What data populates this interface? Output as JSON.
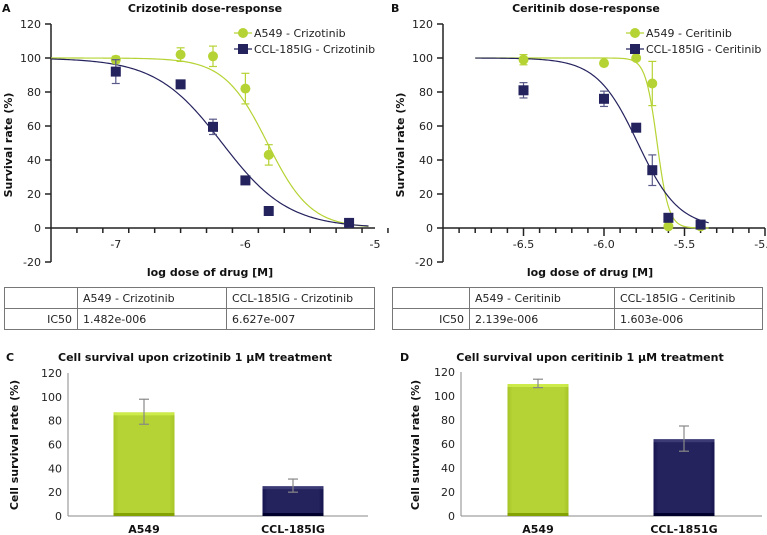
{
  "colors": {
    "a549": "#b5d334",
    "ccl": "#25235e",
    "axis": "#222222",
    "bar_axis": "#888888"
  },
  "chart_data": [
    {
      "panel": "A",
      "type": "scatter",
      "title": "Crizotinib dose-response",
      "xlabel": "log dose of drug [M]",
      "ylabel": "Survival rate (%)",
      "xlim": [
        -7.5,
        -5
      ],
      "ylim": [
        -20,
        120
      ],
      "xticks": [
        -7,
        -6,
        -5
      ],
      "xtick_labels": [
        "-7",
        "-6",
        "-5"
      ],
      "yticks": [
        -20,
        0,
        20,
        40,
        60,
        80,
        100,
        120
      ],
      "ytick_labels": [
        "-20",
        "0",
        "20",
        "40",
        "60",
        "80",
        "100",
        "120"
      ],
      "legend_position": "top-right",
      "series": [
        {
          "name": "A549 - Crizotinib",
          "marker": "circle",
          "color_key": "a549",
          "x": [
            -7,
            -6.5,
            -6.25,
            -6,
            -5.82,
            -5.2
          ],
          "y": [
            99,
            102,
            101,
            82,
            43,
            3
          ],
          "err": [
            2,
            4,
            6,
            9,
            6,
            1
          ],
          "fit": {
            "top": 100,
            "bottom": 0,
            "logEC50": -5.83,
            "hill": -2.6,
            "xmin": -7.5,
            "xmax": -5.05
          }
        },
        {
          "name": "CCL-185IG - Crizotinib",
          "marker": "square",
          "color_key": "ccl",
          "x": [
            -7,
            -6.5,
            -6.25,
            -6,
            -5.82,
            -5.2
          ],
          "y": [
            92,
            84.5,
            59.5,
            28,
            10,
            3
          ],
          "err": [
            7,
            1,
            4.5,
            1,
            1,
            1
          ],
          "fit": {
            "top": 100,
            "bottom": 0,
            "logEC50": -6.18,
            "hill": -1.7,
            "xmin": -7.5,
            "xmax": -5.05
          }
        }
      ],
      "table": {
        "headers": [
          "",
          "A549 - Crizotinib",
          "CCL-185IG - Crizotinib"
        ],
        "rows": [
          [
            "IC50",
            "1.482e-006",
            "6.627e-007"
          ]
        ]
      }
    },
    {
      "panel": "B",
      "type": "scatter",
      "title": "Ceritinib dose-response",
      "xlabel": "log dose of drug [M]",
      "ylabel": "Survival rate (%)",
      "xlim": [
        -7.0,
        -5.0
      ],
      "ylim": [
        -20,
        120
      ],
      "xticks": [
        -6.5,
        -6.0,
        -5.5,
        -5.0
      ],
      "xtick_labels": [
        "-6.5",
        "-6.0",
        "-5.5",
        "-5.0"
      ],
      "yticks": [
        -20,
        0,
        20,
        40,
        60,
        80,
        100,
        120
      ],
      "ytick_labels": [
        "-20",
        "0",
        "20",
        "40",
        "60",
        "80",
        "100",
        "120"
      ],
      "legend_position": "top-right",
      "series": [
        {
          "name": "A549 - Ceritinib",
          "marker": "circle",
          "color_key": "a549",
          "x": [
            -6.5,
            -6.0,
            -5.8,
            -5.7,
            -5.6,
            -5.4
          ],
          "y": [
            99,
            97,
            100,
            85,
            1,
            1
          ],
          "err": [
            3,
            1,
            1,
            13,
            1,
            1
          ],
          "fit": {
            "top": 100,
            "bottom": 0,
            "logEC50": -5.67,
            "hill": -12,
            "xmin": -6.8,
            "xmax": -5.35
          }
        },
        {
          "name": "CCL-185IG - Ceritinib",
          "marker": "square",
          "color_key": "ccl",
          "x": [
            -6.5,
            -6.0,
            -5.8,
            -5.7,
            -5.6,
            -5.4
          ],
          "y": [
            81,
            76,
            59,
            34,
            6,
            2
          ],
          "err": [
            4.5,
            4.5,
            2,
            9,
            1,
            1
          ],
          "fit": {
            "top": 100,
            "bottom": 0,
            "logEC50": -5.79,
            "hill": -3.4,
            "xmin": -6.8,
            "xmax": -5.35
          }
        }
      ],
      "table": {
        "headers": [
          "",
          "A549 - Ceritinib",
          "CCL-185IG - Ceritinib"
        ],
        "rows": [
          [
            "IC50",
            "2.139e-006",
            "1.603e-006"
          ]
        ]
      }
    },
    {
      "panel": "C",
      "type": "bar",
      "title": "Cell survival upon crizotinib 1 μM treatment",
      "xlabel": "",
      "ylabel": "Cell survival rate (%)",
      "ylim": [
        0,
        120
      ],
      "yticks": [
        0,
        20,
        40,
        60,
        80,
        100,
        120
      ],
      "ytick_labels": [
        "0",
        "20",
        "40",
        "60",
        "80",
        "100",
        "120"
      ],
      "categories": [
        "A549",
        "CCL-185IG"
      ],
      "values": [
        87,
        25
      ],
      "err_low": [
        77,
        20
      ],
      "err_high": [
        98,
        31
      ],
      "color_keys": [
        "a549",
        "ccl"
      ]
    },
    {
      "panel": "D",
      "type": "bar",
      "title": "Cell survival upon ceritinib 1 μM treatment",
      "xlabel": "",
      "ylabel": "Cell survival rate (%)",
      "ylim": [
        0,
        120
      ],
      "yticks": [
        0,
        20,
        40,
        60,
        80,
        100,
        120
      ],
      "ytick_labels": [
        "0",
        "20",
        "40",
        "60",
        "80",
        "100",
        "120"
      ],
      "categories": [
        "A549",
        "CCL-1851G"
      ],
      "values": [
        110,
        64
      ],
      "err_low": [
        107,
        54
      ],
      "err_high": [
        114,
        75
      ],
      "color_keys": [
        "a549",
        "ccl"
      ]
    }
  ]
}
